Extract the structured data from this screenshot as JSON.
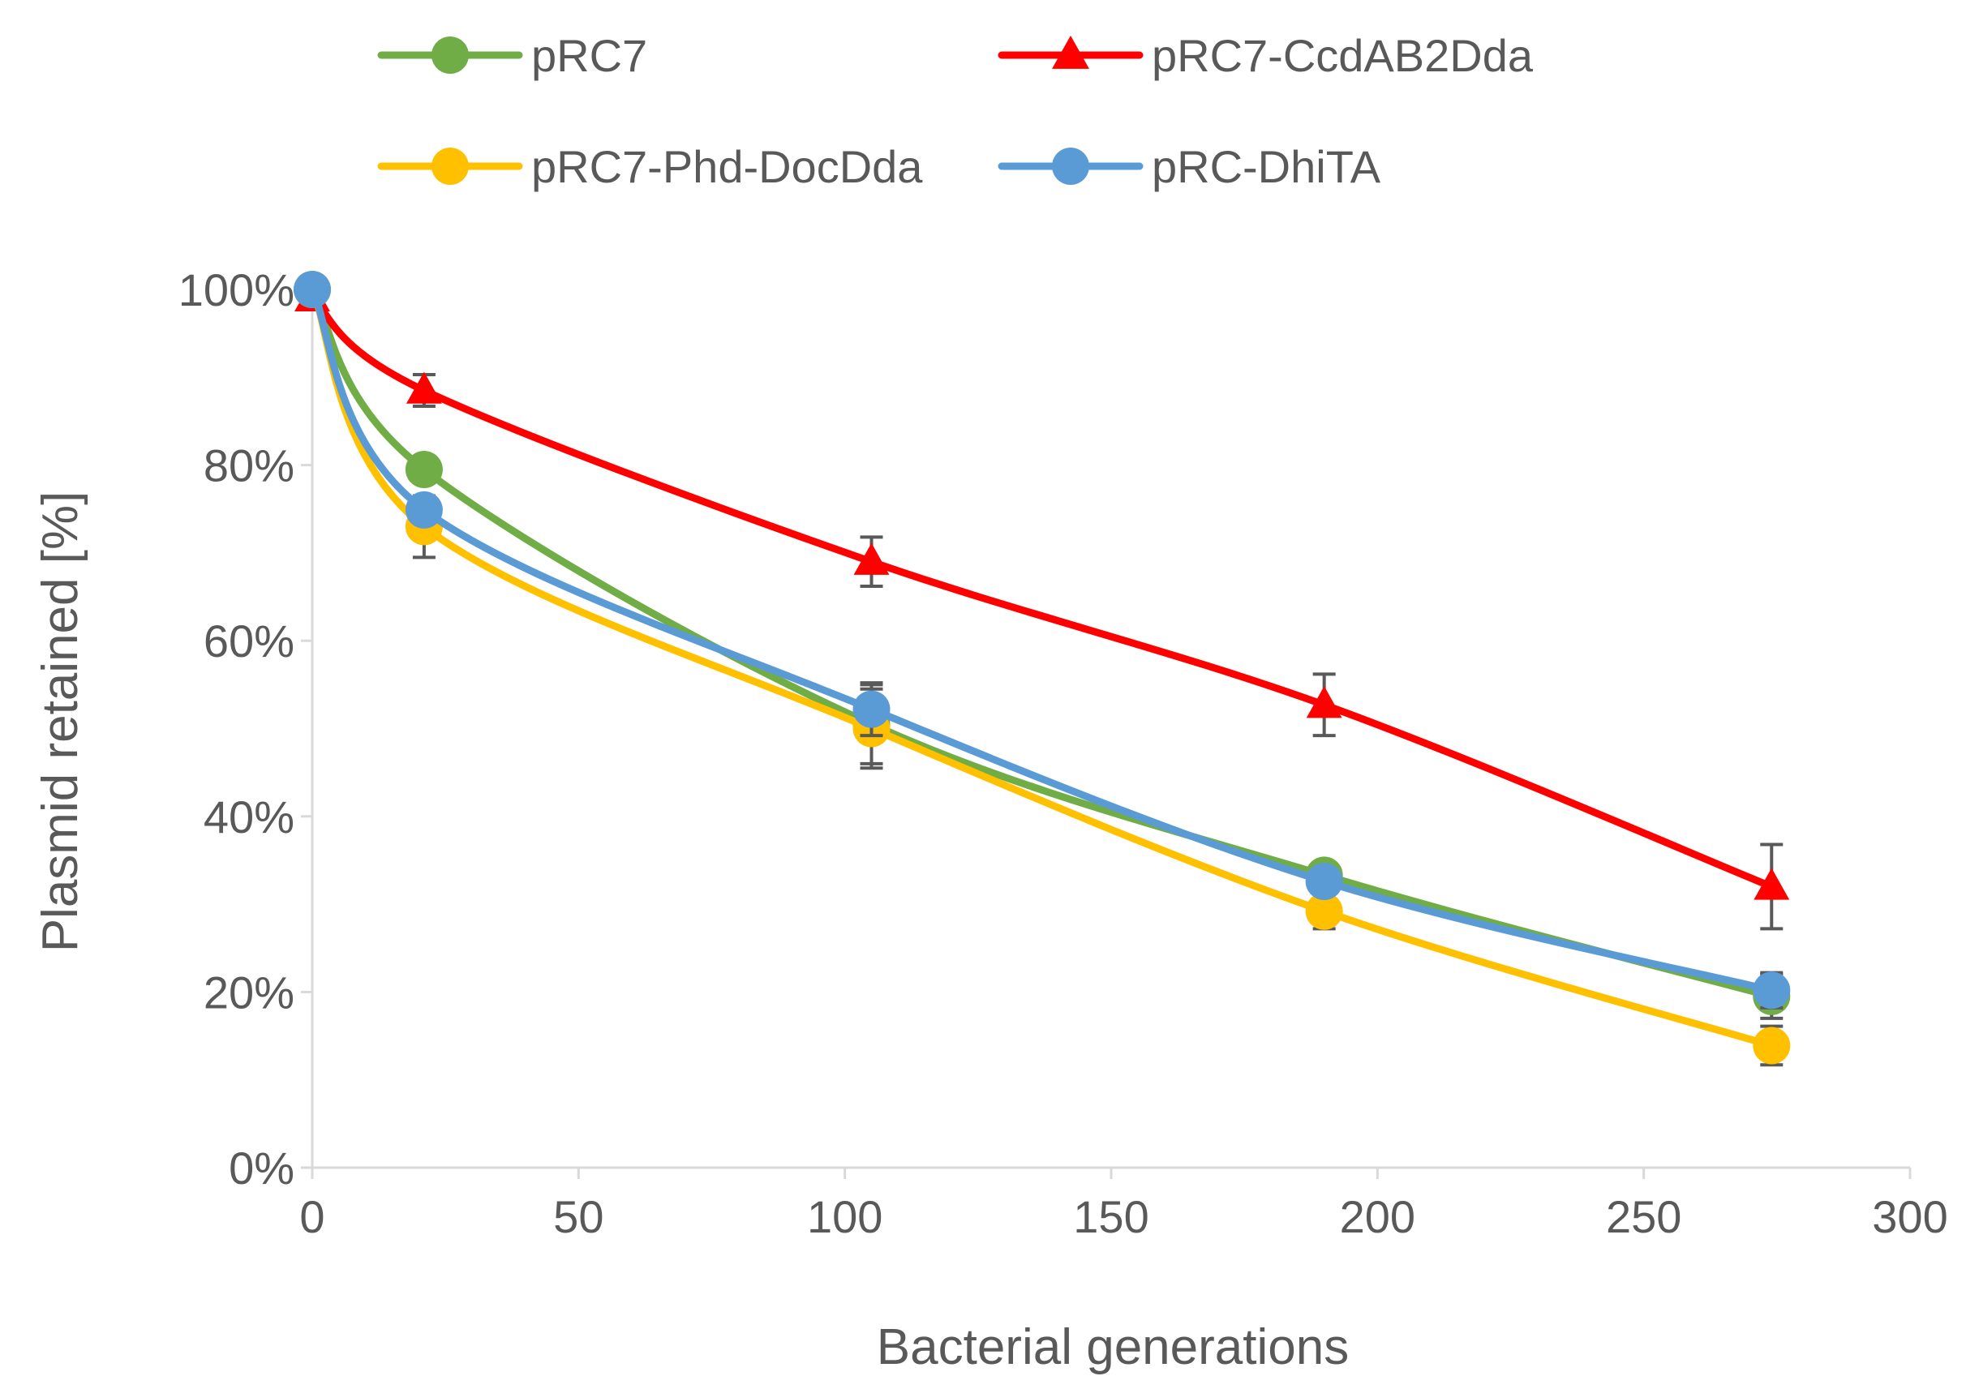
{
  "chart_data": {
    "type": "line",
    "title": "",
    "xlabel": "Bacterial generations",
    "ylabel": "Plasmid retained [%]",
    "xlim": [
      0,
      300
    ],
    "ylim": [
      0,
      100
    ],
    "x_ticks": [
      0,
      50,
      100,
      150,
      200,
      250,
      300
    ],
    "x_tick_labels": [
      "0",
      "50",
      "100",
      "150",
      "200",
      "250",
      "300"
    ],
    "y_ticks": [
      0,
      20,
      40,
      60,
      80,
      100
    ],
    "y_tick_labels": [
      "0%",
      "20%",
      "40%",
      "60%",
      "80%",
      "100%"
    ],
    "grid": false,
    "legend_position": "top",
    "x": [
      0,
      21,
      105,
      190,
      274
    ],
    "series": [
      {
        "name": "pRC7",
        "color": "#70AD47",
        "marker": "circle",
        "values": [
          100,
          79.5,
          50.5,
          33.3,
          19.5
        ],
        "errors": [
          0,
          1.5,
          4.5,
          1.0,
          2.5
        ]
      },
      {
        "name": "pRC7-CcdAB2Dda",
        "color": "#FF0000",
        "marker": "triangle",
        "values": [
          99,
          88.5,
          69,
          52.7,
          32
        ],
        "errors": [
          0,
          1.8,
          2.8,
          3.5,
          4.8
        ]
      },
      {
        "name": "pRC7-Phd-DocDda",
        "color": "#FFC000",
        "marker": "circle",
        "values": [
          100,
          73,
          50,
          29.2,
          13.9
        ],
        "errors": [
          0,
          3.5,
          4.5,
          2.0,
          2.2
        ]
      },
      {
        "name": "pRC-DhiTA",
        "color": "#5B9BD5",
        "marker": "circle",
        "values": [
          100,
          74.9,
          52.2,
          32.6,
          20.2
        ],
        "errors": [
          0,
          1.5,
          3.0,
          1.0,
          2.0
        ]
      }
    ]
  }
}
